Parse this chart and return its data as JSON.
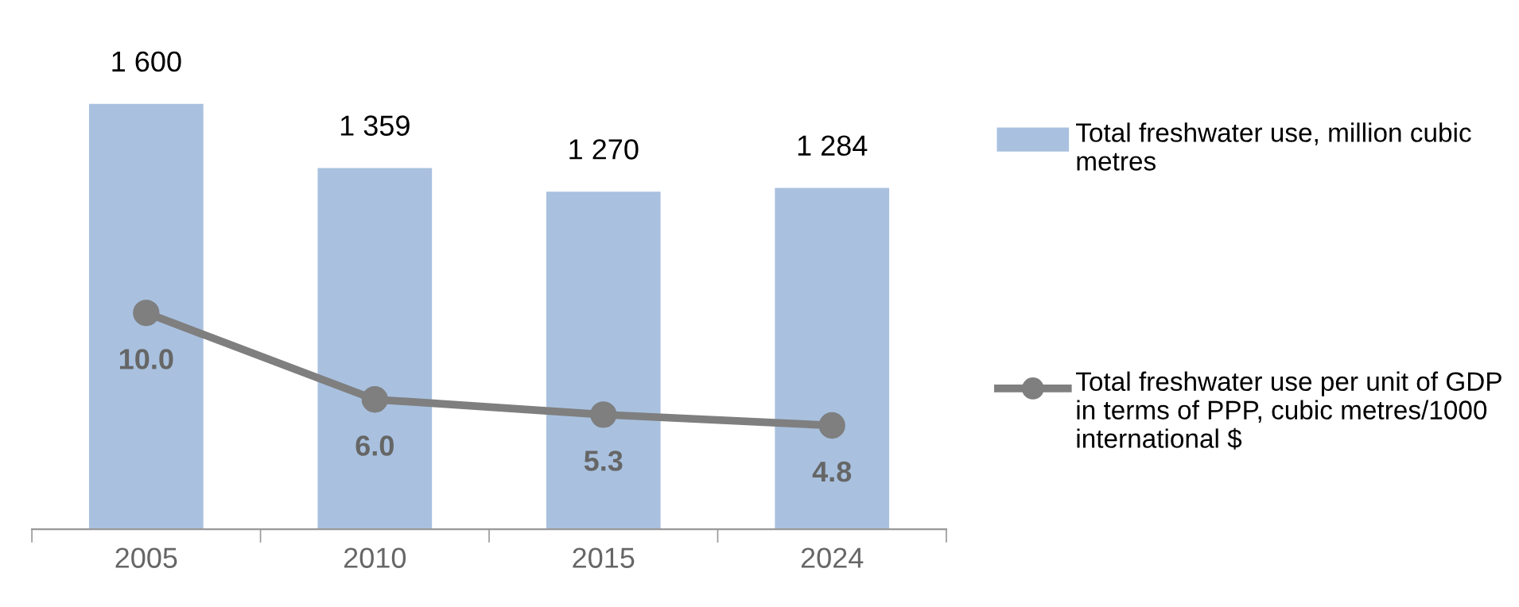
{
  "chart_data": {
    "type": "bar",
    "categories": [
      "2005",
      "2010",
      "2015",
      "2024"
    ],
    "series": [
      {
        "name": "Total freshwater use, million cubic metres",
        "color": "#a9c1df",
        "values": [
          1600,
          1359,
          1270,
          1284
        ],
        "value_labels": [
          "1 600",
          "1 359",
          "1 270",
          "1 284"
        ]
      },
      {
        "name": "Total freshwater use per unit of GDP in terms of PPP, cubic metres/1000 international $",
        "type": "line",
        "axis": "y2",
        "color": "#7f7f7f",
        "marker": "circle",
        "values": [
          10.0,
          6.0,
          5.3,
          4.8
        ],
        "value_labels": [
          "10.0",
          "6.0",
          "5.3",
          "4.8"
        ]
      }
    ],
    "tick_labels": "x",
    "grid": false,
    "legend": "right"
  }
}
